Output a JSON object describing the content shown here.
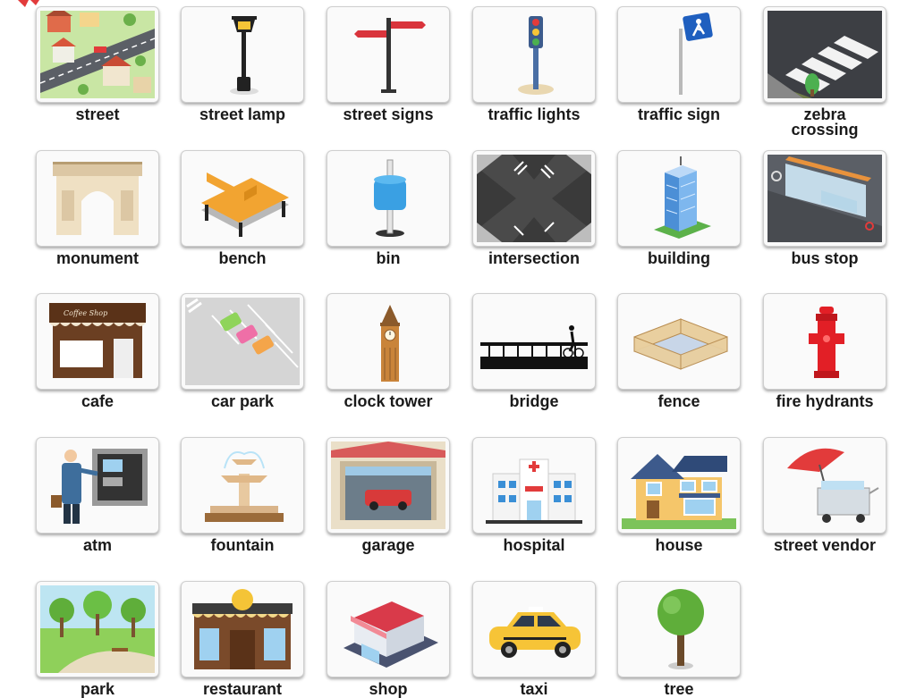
{
  "cards": [
    {
      "label": "street",
      "icon": "street-icon"
    },
    {
      "label": "street lamp",
      "icon": "street-lamp-icon"
    },
    {
      "label": "street signs",
      "icon": "street-signs-icon"
    },
    {
      "label": "traffic lights",
      "icon": "traffic-lights-icon"
    },
    {
      "label": "traffic sign",
      "icon": "traffic-sign-icon"
    },
    {
      "label": "zebra\ncrossing",
      "icon": "zebra-crossing-icon"
    },
    {
      "label": "monument",
      "icon": "monument-icon"
    },
    {
      "label": "bench",
      "icon": "bench-icon"
    },
    {
      "label": "bin",
      "icon": "bin-icon"
    },
    {
      "label": "intersection",
      "icon": "intersection-icon"
    },
    {
      "label": "building",
      "icon": "building-icon"
    },
    {
      "label": "bus stop",
      "icon": "bus-stop-icon"
    },
    {
      "label": "cafe",
      "icon": "cafe-icon"
    },
    {
      "label": "car park",
      "icon": "car-park-icon"
    },
    {
      "label": "clock tower",
      "icon": "clock-tower-icon"
    },
    {
      "label": "bridge",
      "icon": "bridge-icon"
    },
    {
      "label": "fence",
      "icon": "fence-icon"
    },
    {
      "label": "fire hydrants",
      "icon": "fire-hydrant-icon"
    },
    {
      "label": "atm",
      "icon": "atm-icon"
    },
    {
      "label": "fountain",
      "icon": "fountain-icon"
    },
    {
      "label": "garage",
      "icon": "garage-icon"
    },
    {
      "label": "hospital",
      "icon": "hospital-icon"
    },
    {
      "label": "house",
      "icon": "house-icon"
    },
    {
      "label": "street vendor",
      "icon": "street-vendor-icon"
    },
    {
      "label": "park",
      "icon": "park-icon"
    },
    {
      "label": "restaurant",
      "icon": "restaurant-icon"
    },
    {
      "label": "shop",
      "icon": "shop-icon"
    },
    {
      "label": "taxi",
      "icon": "taxi-icon"
    },
    {
      "label": "tree",
      "icon": "tree-icon"
    }
  ]
}
